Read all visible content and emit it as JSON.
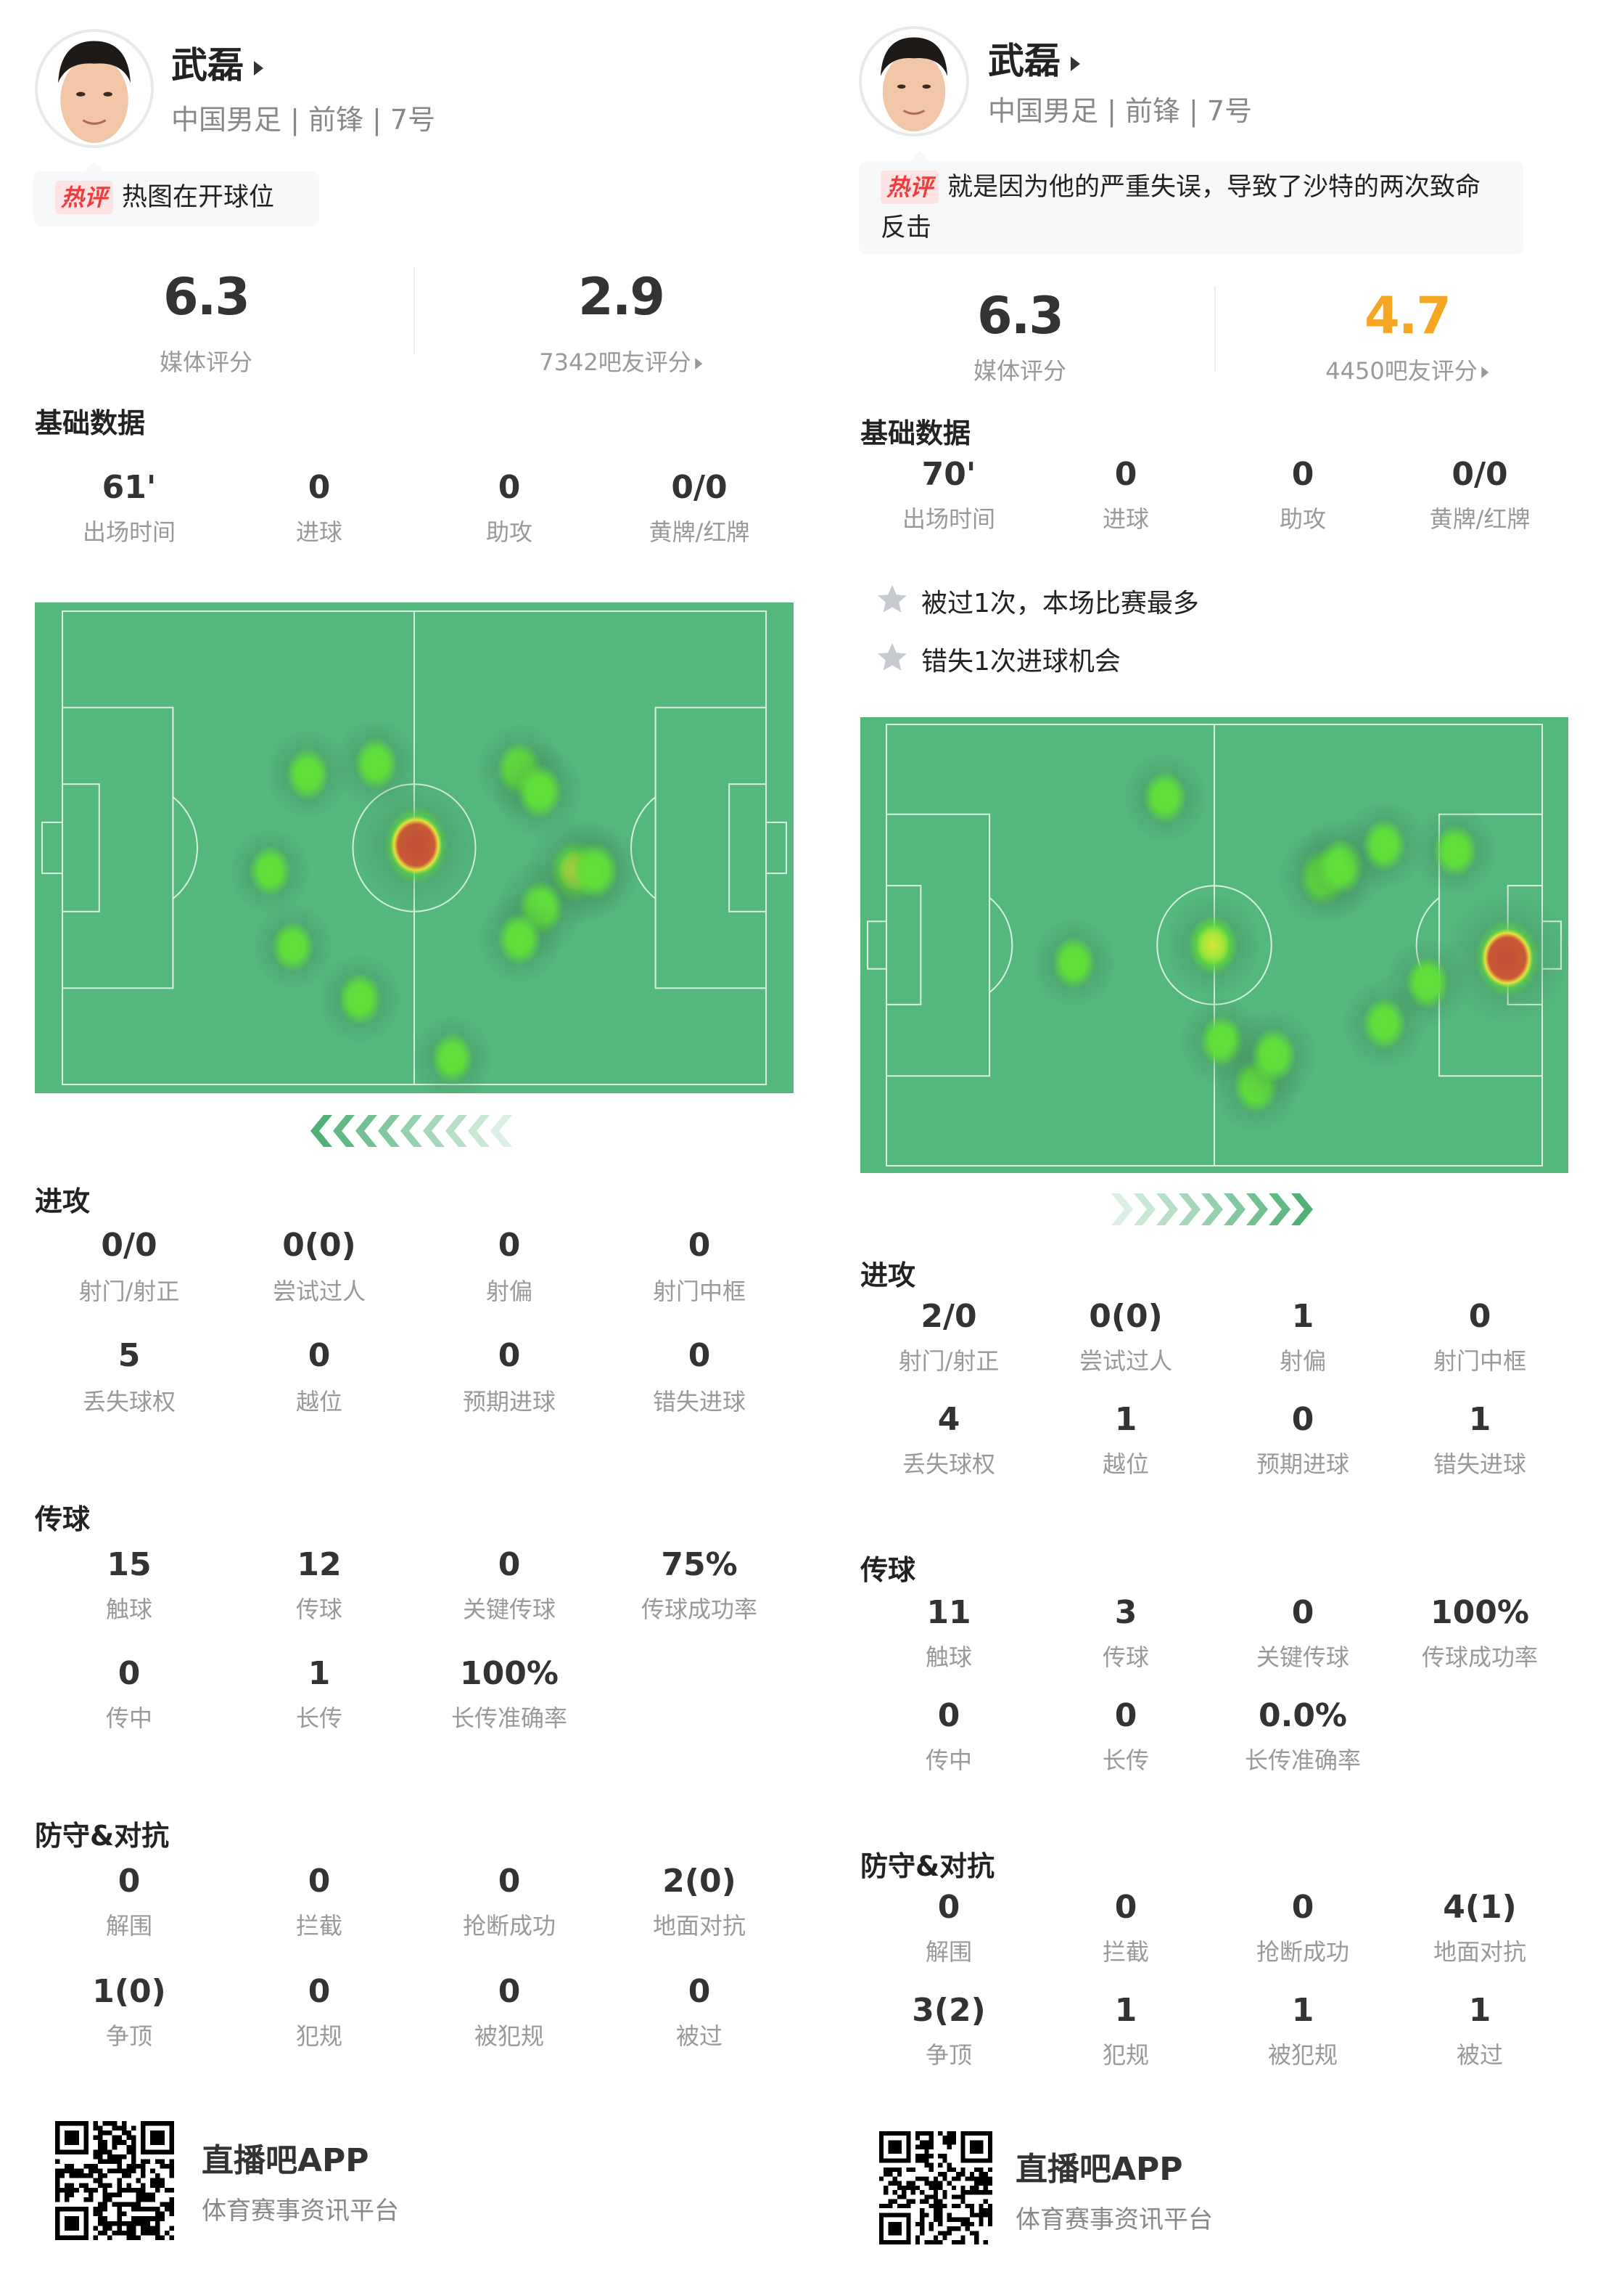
{
  "colors": {
    "pitch": "#54b87d",
    "line": "#d9f0e0",
    "fan_rating_right": "#f5a623",
    "hot_badge": "#f03c3c"
  },
  "panels": [
    {
      "player": {
        "name": "武磊",
        "info": "中国男足 | 前锋 | 7号"
      },
      "hot_comment": {
        "badge": "热评",
        "text": "热图在开球位"
      },
      "ratings": {
        "media_value": "6.3",
        "media_label": "媒体评分",
        "fan_value": "2.9",
        "fan_label": "7342吧友评分"
      },
      "basic": {
        "title": "基础数据",
        "stats": [
          {
            "value": "61'",
            "label": "出场时间"
          },
          {
            "value": "0",
            "label": "进球"
          },
          {
            "value": "0",
            "label": "助攻"
          },
          {
            "value": "0/0",
            "label": "黄牌/红牌"
          }
        ]
      },
      "highlights": [],
      "heatmap": {
        "attack_direction": "left",
        "points": [
          {
            "x": 52.8,
            "y": 33.6,
            "i": 1.0
          },
          {
            "x": 36.6,
            "y": 23.4,
            "i": 0.35
          },
          {
            "x": 46.8,
            "y": 21.9,
            "i": 0.35
          },
          {
            "x": 31.0,
            "y": 37.3,
            "i": 0.3
          },
          {
            "x": 34.4,
            "y": 48.2,
            "i": 0.3
          },
          {
            "x": 44.4,
            "y": 55.7,
            "i": 0.35
          },
          {
            "x": 58.2,
            "y": 64.2,
            "i": 0.3
          },
          {
            "x": 68.2,
            "y": 22.7,
            "i": 0.4
          },
          {
            "x": 71.2,
            "y": 25.9,
            "i": 0.4
          },
          {
            "x": 76.6,
            "y": 37.3,
            "i": 0.6
          },
          {
            "x": 79.5,
            "y": 37.3,
            "i": 0.45
          },
          {
            "x": 71.4,
            "y": 42.6,
            "i": 0.4
          },
          {
            "x": 68.2,
            "y": 47.1,
            "i": 0.35
          }
        ]
      },
      "sections": [
        {
          "title": "进攻",
          "stats": [
            {
              "value": "0/0",
              "label": "射门/射正"
            },
            {
              "value": "0(0)",
              "label": "尝试过人"
            },
            {
              "value": "0",
              "label": "射偏"
            },
            {
              "value": "0",
              "label": "射门中框"
            },
            {
              "value": "5",
              "label": "丢失球权"
            },
            {
              "value": "0",
              "label": "越位"
            },
            {
              "value": "0",
              "label": "预期进球"
            },
            {
              "value": "0",
              "label": "错失进球"
            }
          ]
        },
        {
          "title": "传球",
          "stats": [
            {
              "value": "15",
              "label": "触球"
            },
            {
              "value": "12",
              "label": "传球"
            },
            {
              "value": "0",
              "label": "关键传球"
            },
            {
              "value": "75%",
              "label": "传球成功率"
            },
            {
              "value": "0",
              "label": "传中"
            },
            {
              "value": "1",
              "label": "长传"
            },
            {
              "value": "100%",
              "label": "长传准确率"
            }
          ]
        },
        {
          "title": "防守&对抗",
          "stats": [
            {
              "value": "0",
              "label": "解围"
            },
            {
              "value": "0",
              "label": "拦截"
            },
            {
              "value": "0",
              "label": "抢断成功"
            },
            {
              "value": "2(0)",
              "label": "地面对抗"
            },
            {
              "value": "1(0)",
              "label": "争顶"
            },
            {
              "value": "0",
              "label": "犯规"
            },
            {
              "value": "0",
              "label": "被犯规"
            },
            {
              "value": "0",
              "label": "被过"
            }
          ]
        }
      ],
      "footer": {
        "title": "直播吧APP",
        "subtitle": "体育赛事资讯平台"
      }
    },
    {
      "player": {
        "name": "武磊",
        "info": "中国男足 | 前锋 | 7号"
      },
      "hot_comment": {
        "badge": "热评",
        "text": "就是因为他的严重失误，导致了沙特的两次致命反击"
      },
      "ratings": {
        "media_value": "6.3",
        "media_label": "媒体评分",
        "fan_value": "4.7",
        "fan_label": "4450吧友评分"
      },
      "basic": {
        "title": "基础数据",
        "stats": [
          {
            "value": "70'",
            "label": "出场时间"
          },
          {
            "value": "0",
            "label": "进球"
          },
          {
            "value": "0",
            "label": "助攻"
          },
          {
            "value": "0/0",
            "label": "黄牌/红牌"
          }
        ]
      },
      "highlights": [
        "被过1次，本场比赛最多",
        "错失1次进球机会"
      ],
      "heatmap": {
        "attack_direction": "right",
        "points": [
          {
            "x": 52.3,
            "y": 34.0,
            "i": 0.55
          },
          {
            "x": 44.6,
            "y": 11.2,
            "i": 0.35
          },
          {
            "x": 30.0,
            "y": 36.7,
            "i": 0.35
          },
          {
            "x": 69.9,
            "y": 23.5,
            "i": 0.45
          },
          {
            "x": 72.7,
            "y": 21.9,
            "i": 0.45
          },
          {
            "x": 79.7,
            "y": 18.6,
            "i": 0.35
          },
          {
            "x": 91.1,
            "y": 19.5,
            "i": 0.35
          },
          {
            "x": 99.4,
            "y": 36.0,
            "i": 1.0
          },
          {
            "x": 86.6,
            "y": 39.8,
            "i": 0.35
          },
          {
            "x": 79.7,
            "y": 46.1,
            "i": 0.35
          },
          {
            "x": 53.7,
            "y": 48.8,
            "i": 0.35
          },
          {
            "x": 59.2,
            "y": 55.7,
            "i": 0.4
          },
          {
            "x": 62.0,
            "y": 51.0,
            "i": 0.4
          }
        ]
      },
      "sections": [
        {
          "title": "进攻",
          "stats": [
            {
              "value": "2/0",
              "label": "射门/射正"
            },
            {
              "value": "0(0)",
              "label": "尝试过人"
            },
            {
              "value": "1",
              "label": "射偏"
            },
            {
              "value": "0",
              "label": "射门中框"
            },
            {
              "value": "4",
              "label": "丢失球权"
            },
            {
              "value": "1",
              "label": "越位"
            },
            {
              "value": "0",
              "label": "预期进球"
            },
            {
              "value": "1",
              "label": "错失进球"
            }
          ]
        },
        {
          "title": "传球",
          "stats": [
            {
              "value": "11",
              "label": "触球"
            },
            {
              "value": "3",
              "label": "传球"
            },
            {
              "value": "0",
              "label": "关键传球"
            },
            {
              "value": "100%",
              "label": "传球成功率"
            },
            {
              "value": "0",
              "label": "传中"
            },
            {
              "value": "0",
              "label": "长传"
            },
            {
              "value": "0.0%",
              "label": "长传准确率"
            }
          ]
        },
        {
          "title": "防守&对抗",
          "stats": [
            {
              "value": "0",
              "label": "解围"
            },
            {
              "value": "0",
              "label": "拦截"
            },
            {
              "value": "0",
              "label": "抢断成功"
            },
            {
              "value": "4(1)",
              "label": "地面对抗"
            },
            {
              "value": "3(2)",
              "label": "争顶"
            },
            {
              "value": "1",
              "label": "犯规"
            },
            {
              "value": "1",
              "label": "被犯规"
            },
            {
              "value": "1",
              "label": "被过"
            }
          ]
        }
      ],
      "footer": {
        "title": "直播吧APP",
        "subtitle": "体育赛事资讯平台"
      }
    }
  ]
}
